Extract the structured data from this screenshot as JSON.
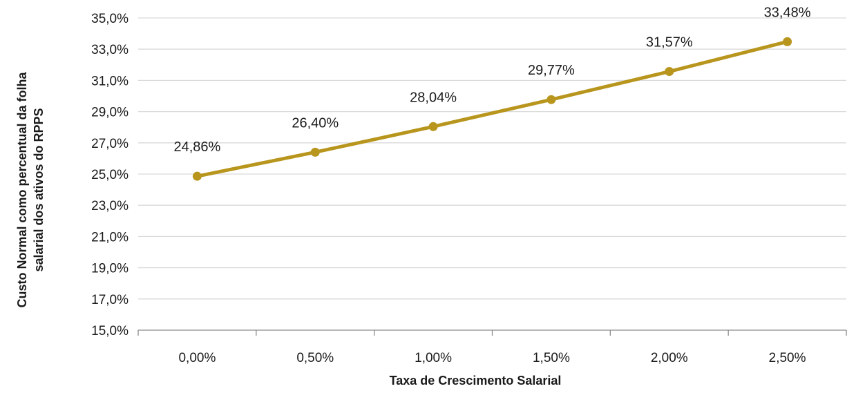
{
  "chart_data": {
    "type": "line",
    "title": "",
    "xlabel": "Taxa de Crescimento Salarial",
    "ylabel_lines": [
      "Custo Normal como percentual da folha",
      "salarial dos ativos do RPPS"
    ],
    "categories": [
      "0,00%",
      "0,50%",
      "1,00%",
      "1,50%",
      "2,00%",
      "2,50%"
    ],
    "series": [
      {
        "values": [
          24.86,
          26.4,
          28.04,
          29.77,
          31.57,
          33.48
        ],
        "labels": [
          "24,86%",
          "26,40%",
          "28,04%",
          "29,77%",
          "31,57%",
          "33,48%"
        ]
      }
    ],
    "ylim": [
      15,
      35
    ],
    "yticks": [
      15,
      17,
      19,
      21,
      23,
      25,
      27,
      29,
      31,
      33,
      35
    ],
    "ytick_labels": [
      "15,0%",
      "17,0%",
      "19,0%",
      "21,0%",
      "23,0%",
      "25,0%",
      "27,0%",
      "29,0%",
      "31,0%",
      "33,0%",
      "35,0%"
    ],
    "grid": true,
    "legend": "none",
    "colors": {
      "line": "#B8961E",
      "grid": "#D9D9D9",
      "axis": "#8C8C8C"
    }
  }
}
